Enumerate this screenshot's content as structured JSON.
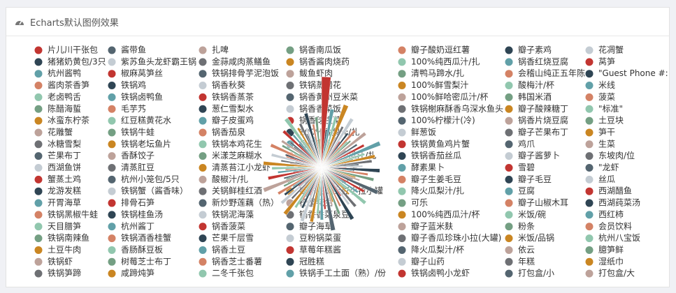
{
  "header": {
    "title": "Echarts默认图例效果"
  },
  "chart_data": {
    "type": "pie",
    "rose_type": "radius",
    "palette": [
      "#c23531",
      "#2f4554",
      "#61a0a8",
      "#d48265",
      "#91c7ae",
      "#749f83",
      "#ca8622",
      "#bda29a",
      "#6e7074",
      "#546570",
      "#c4ccd3"
    ],
    "categories": [
      "片儿川干张包",
      "猪猪奶黄包/3只",
      "杭州酱鸭",
      "酱肉茶香笋",
      "老卤鸭舌",
      "陈醋海蜇",
      "冰蛮东柠茶",
      "花雕蟹",
      "冰糖雪梨",
      "芒果布丁",
      "西湖鱼饼",
      "蟹蒸土鸡",
      "龙游发糕",
      "开胃海草",
      "铁锅黑椒牛蛙",
      "天目腊笋",
      "铁锅南辣鱼",
      "土豆牛肉",
      "铁锅虾",
      "铁锅笋蹄",
      "酱带鱼",
      "紫苏鱼头龙虾霸王锅",
      "椒麻莴笋丝",
      "铁锅鸡",
      "铁锅卤鸭鱼",
      "毛芋艿",
      "红豆糕黄花水",
      "铁锅牛蛙",
      "铁锅老坛鱼片",
      "香酥饺子",
      "清蒸肛豆",
      "杭州小笼包/5只",
      "铁锅蟹（酱香味）",
      "排骨石笋",
      "铁锅桂鱼汤",
      "杭州酱丁",
      "铁锅酒香桂蟹",
      "香肠酥豆板",
      "树莓芝士布丁",
      "咸蹄炖笋",
      "扎啤",
      "金蒜咸肉蒸鳝鱼",
      "铁锅排骨芋泥泡饭",
      "锅香秋葵",
      "铁锅香蒸茶",
      "葱仁雪梨水",
      "瓣子皮蛋鸡",
      "锅香茄泉",
      "铁锅本鸡花生",
      "米漾芝麻糊水",
      "清蒸苔江小龙虾",
      "酸椒汁/扎",
      "关锅鲜桂红酒",
      "新炒野莲藕（热）",
      "铁锅泥海藻",
      "锅香菠菜",
      "芒果千层雪",
      "锅香土豆",
      "锅香芝士番薯",
      "二冬千张包",
      "锅香南瓜饭",
      "锅香酱肉烧药",
      "鲅鱼虾肉",
      "铁锅蒸腊花",
      "锅香黄州豆米菜",
      "锅香香菜饭",
      "锅香球生菜",
      "100%香梨汁/扎",
      "香鸭鲜小",
      "100%鲜哈密瓜汁/扎",
      "锅香咸肉黄米茶",
      "锅香咸肉莴笋",
      "瓣子生姜土豆小拉小罐",
      "柠檬花生",
      "锅香香菜泉豆",
      "瓣子海草",
      "豆粉锅菜蛋",
      "草莓年糕酱",
      "冠胜糕",
      "铁锅手工土面（熟）/份",
      "瓣子酸奶逗红薯",
      "100%纯西瓜汁/扎",
      "清鸭马蹄水/扎",
      "100%鲜雪梨汁",
      "100%鲜哈密瓜汁/杯",
      "铁锅榭麻酥香乌深水鱼头",
      "100%柠檬汁(冷)",
      "鲜葱饭",
      "铁锅黄鱼鸡片蟹",
      "铁锅香茄丝瓜",
      "酵素果卜",
      "瓣子生姜毛豆",
      "降火瓜梨汁/扎",
      "可乐",
      "100%纯西瓜汁/杯",
      "瓣子蓝米麸",
      "瓣子香瓜珍珠小拉(大罐)",
      "降火瓜梨汁/杯",
      "瓣子山药",
      "铁锅卤鸭小龙虾",
      "瓣子素鸡",
      "锅香红烧豆腐",
      "会稽山纯正五年陈",
      "酸梅汁/杯",
      "韩国米酒",
      "瓣子酸辣糖丁",
      "锅香片烧豆腐",
      "瓣子芒果布丁",
      "鸡爪",
      "瓣子酱萝卜",
      "雪碧",
      "瓣子毛豆",
      "豆腐",
      "瓣子山椒木耳",
      "米饭/碗",
      "粉条",
      "米饭/品锅",
      "依云",
      "年糕",
      "打包盒/小",
      "花凋蟹",
      "莴笋",
      "\"Guest Phone #:",
      "米线",
      "菠菜",
      "\"标准\"",
      "土豆块",
      "笋干",
      "生菜",
      "东坡肉/位",
      "\"龙虾",
      "丝瓜",
      "西湖醋鱼",
      "西湖莼菜汤",
      "西红柿",
      "会员饮料",
      "杭州八宝饭",
      "臆笋鲜",
      "湿纸巾",
      "打包盒/大"
    ],
    "values": [
      95,
      40,
      62,
      30,
      55,
      28,
      70,
      35,
      48,
      22,
      60,
      33,
      45,
      27,
      52,
      38,
      41,
      25,
      58,
      31,
      44,
      36,
      50,
      24,
      66,
      29,
      47,
      34,
      57,
      21,
      53,
      39,
      43,
      26,
      61,
      32,
      49,
      23,
      56,
      37,
      42,
      35,
      64,
      28,
      51,
      30,
      46,
      25,
      59,
      33,
      40,
      27,
      54,
      22,
      48,
      36,
      63,
      29,
      45,
      31,
      52,
      38,
      41,
      26,
      67,
      34,
      44,
      23,
      55,
      30,
      49,
      37,
      58,
      28,
      43,
      24,
      60,
      32,
      47,
      35,
      39,
      50,
      27,
      62,
      33,
      45,
      24,
      56,
      31,
      48,
      36,
      53,
      29,
      44,
      22,
      65,
      34,
      41,
      26,
      57,
      30,
      46,
      38,
      52,
      25,
      61,
      33,
      43,
      28,
      54,
      35,
      40,
      23,
      58,
      32,
      47,
      27,
      50,
      36,
      42,
      29,
      55,
      34,
      45,
      24,
      63,
      31,
      48,
      26,
      51,
      37,
      44,
      22,
      59,
      33,
      46,
      28,
      53,
      30,
      41
    ]
  }
}
